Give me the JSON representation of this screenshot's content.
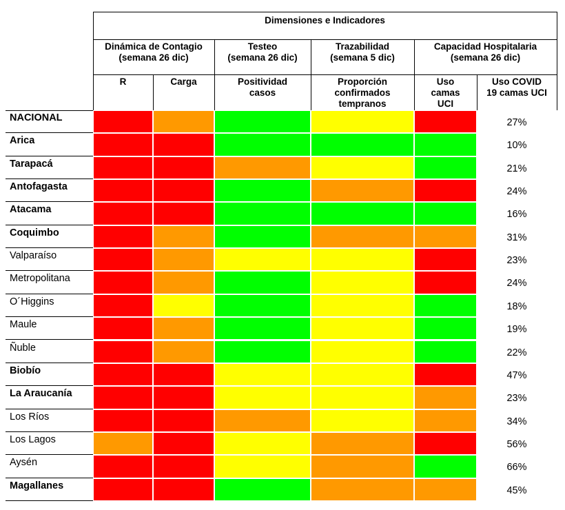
{
  "header": {
    "title": "Dimensiones e Indicadores",
    "groups": [
      {
        "lines": [
          "Dinámica de Contagio",
          "(semana 26 dic)"
        ]
      },
      {
        "lines": [
          "Testeo",
          "(semana 26 dic)"
        ]
      },
      {
        "lines": [
          "Trazabilidad",
          "(semana 5 dic)"
        ]
      },
      {
        "lines": [
          "Capacidad Hospitalaria",
          "(semana 26 dic)"
        ]
      }
    ],
    "columns": [
      {
        "lines": [
          "R"
        ]
      },
      {
        "lines": [
          "Carga"
        ]
      },
      {
        "lines": [
          "Positividad",
          "casos"
        ]
      },
      {
        "lines": [
          "Proporción",
          "confirmados",
          "tempranos"
        ]
      },
      {
        "lines": [
          "Uso",
          "camas",
          "UCI"
        ]
      },
      {
        "lines": [
          "Uso COVID",
          "19 camas UCI"
        ]
      }
    ]
  },
  "rows": [
    {
      "region": "NACIONAL",
      "bold": true,
      "colors": [
        "#ff0000",
        "#ff9900",
        "#00ff00",
        "#ffff00",
        "#ff0000"
      ],
      "value": "27%"
    },
    {
      "region": "Arica",
      "bold": true,
      "colors": [
        "#ff0000",
        "#ff0000",
        "#00ff00",
        "#00ff00",
        "#00ff00"
      ],
      "value": "10%"
    },
    {
      "region": "Tarapacá",
      "bold": true,
      "colors": [
        "#ff0000",
        "#ff0000",
        "#ff9900",
        "#ffff00",
        "#00ff00"
      ],
      "value": "21%"
    },
    {
      "region": "Antofagasta",
      "bold": true,
      "colors": [
        "#ff0000",
        "#ff0000",
        "#00ff00",
        "#ff9900",
        "#ff0000"
      ],
      "value": "24%"
    },
    {
      "region": "Atacama",
      "bold": true,
      "colors": [
        "#ff0000",
        "#ff0000",
        "#00ff00",
        "#00ff00",
        "#00ff00"
      ],
      "value": "16%"
    },
    {
      "region": "Coquimbo",
      "bold": true,
      "colors": [
        "#ff0000",
        "#ff9900",
        "#00ff00",
        "#ff9900",
        "#ff9900"
      ],
      "value": "31%"
    },
    {
      "region": "Valparaíso",
      "bold": false,
      "colors": [
        "#ff0000",
        "#ff9900",
        "#ffff00",
        "#ffff00",
        "#ff0000"
      ],
      "value": "23%"
    },
    {
      "region": "Metropolitana",
      "bold": false,
      "colors": [
        "#ff0000",
        "#ff9900",
        "#00ff00",
        "#ffff00",
        "#ff0000"
      ],
      "value": "24%"
    },
    {
      "region": "O´Higgins",
      "bold": false,
      "colors": [
        "#ff0000",
        "#ffff00",
        "#00ff00",
        "#ffff00",
        "#00ff00"
      ],
      "value": "18%"
    },
    {
      "region": "Maule",
      "bold": false,
      "colors": [
        "#ff0000",
        "#ff9900",
        "#00ff00",
        "#ffff00",
        "#00ff00"
      ],
      "value": "19%"
    },
    {
      "region": "Ñuble",
      "bold": false,
      "colors": [
        "#ff0000",
        "#ff9900",
        "#00ff00",
        "#ffff00",
        "#00ff00"
      ],
      "value": "22%"
    },
    {
      "region": "Biobío",
      "bold": true,
      "colors": [
        "#ff0000",
        "#ff0000",
        "#ffff00",
        "#ffff00",
        "#ff0000"
      ],
      "value": "47%"
    },
    {
      "region": "La Araucanía",
      "bold": true,
      "colors": [
        "#ff0000",
        "#ff0000",
        "#ffff00",
        "#ffff00",
        "#ff9900"
      ],
      "value": "23%"
    },
    {
      "region": "Los Ríos",
      "bold": false,
      "colors": [
        "#ff0000",
        "#ff0000",
        "#ff9900",
        "#ffff00",
        "#ff9900"
      ],
      "value": "34%"
    },
    {
      "region": "Los Lagos",
      "bold": false,
      "colors": [
        "#ff9900",
        "#ff0000",
        "#ffff00",
        "#ff9900",
        "#ff0000"
      ],
      "value": "56%"
    },
    {
      "region": "Aysén",
      "bold": false,
      "colors": [
        "#ff0000",
        "#ff0000",
        "#ffff00",
        "#ff9900",
        "#00ff00"
      ],
      "value": "66%"
    },
    {
      "region": "Magallanes",
      "bold": true,
      "colors": [
        "#ff0000",
        "#ff0000",
        "#00ff00",
        "#ff9900",
        "#ff9900"
      ],
      "value": "45%"
    }
  ]
}
